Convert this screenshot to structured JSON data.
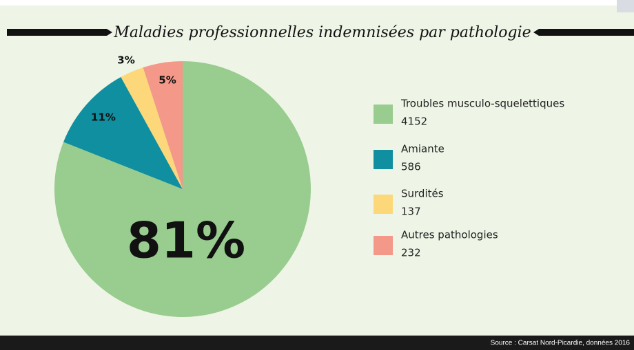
{
  "chart_data": {
    "type": "pie",
    "title": "Maladies professionnelles indemnisées par pathologie",
    "categories": [
      "Troubles musculo-squelettiques",
      "Amiante",
      "Surdités",
      "Autres pathologies"
    ],
    "values": [
      81,
      11,
      3,
      5
    ],
    "value_labels": [
      "81%",
      "11%",
      "3%",
      "5%"
    ],
    "counts": [
      4152,
      586,
      137,
      232
    ],
    "colors": [
      "#99cc8f",
      "#0f8fa0",
      "#fcd87a",
      "#f4988a"
    ],
    "source": "Source : Carsat Nord-Picardie, données 2016"
  }
}
